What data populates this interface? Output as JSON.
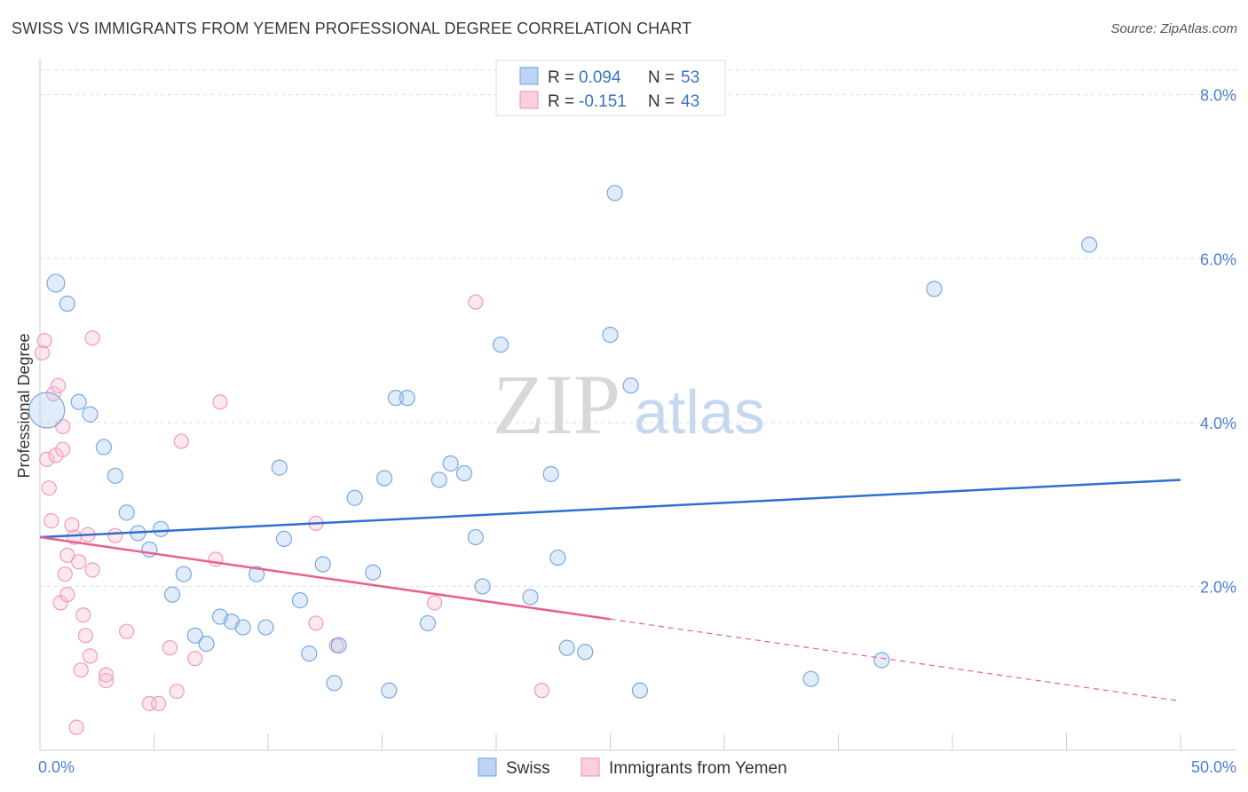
{
  "header": {
    "title": "SWISS VS IMMIGRANTS FROM YEMEN PROFESSIONAL DEGREE CORRELATION CHART",
    "source": "Source: ZipAtlas.com"
  },
  "watermark": {
    "zip": "ZIP",
    "atlas": "atlas"
  },
  "legend_top": {
    "rows": [
      {
        "r_label": "R = ",
        "r_value": "0.094",
        "n_label": "N = ",
        "n_value": "53"
      },
      {
        "r_label": "R = ",
        "r_value": "-0.151",
        "n_label": "N = ",
        "n_value": "43"
      }
    ]
  },
  "legend_bottom": {
    "items": [
      "Swiss",
      "Immigrants from Yemen"
    ]
  },
  "chart_data": {
    "type": "scatter",
    "title": "SWISS VS IMMIGRANTS FROM YEMEN PROFESSIONAL DEGREE CORRELATION CHART",
    "xlabel": "",
    "ylabel": "Professional Degree",
    "xlim": [
      0,
      50
    ],
    "ylim": [
      0,
      8.3
    ],
    "x_tick_labels": [
      "0.0%",
      "50.0%"
    ],
    "y_ticks": [
      2,
      4,
      6,
      8
    ],
    "y_tick_labels": [
      "2.0%",
      "4.0%",
      "6.0%",
      "8.0%"
    ],
    "grid": "horizontal dashed",
    "legend_position": "top-center",
    "colors": {
      "swiss": "#6fa0e0",
      "yemen": "#f08db0",
      "swiss_line": "#2f6fcf",
      "yemen_line": "#e8608f"
    },
    "series": [
      {
        "name": "Swiss",
        "r": 0.094,
        "n": 53,
        "trend": {
          "x": [
            0,
            50
          ],
          "y": [
            2.6,
            3.3
          ]
        },
        "points": [
          [
            0.3,
            4.15
          ],
          [
            0.7,
            5.7
          ],
          [
            1.2,
            5.45
          ],
          [
            1.7,
            4.25
          ],
          [
            2.2,
            4.1
          ],
          [
            2.8,
            3.7
          ],
          [
            3.3,
            3.35
          ],
          [
            3.8,
            2.9
          ],
          [
            4.3,
            2.65
          ],
          [
            4.8,
            2.45
          ],
          [
            5.3,
            2.7
          ],
          [
            5.8,
            1.9
          ],
          [
            6.3,
            2.15
          ],
          [
            6.8,
            1.4
          ],
          [
            7.3,
            1.3
          ],
          [
            7.9,
            1.63
          ],
          [
            8.4,
            1.57
          ],
          [
            8.9,
            1.5
          ],
          [
            9.5,
            2.15
          ],
          [
            9.9,
            1.5
          ],
          [
            10.5,
            3.45
          ],
          [
            10.7,
            2.58
          ],
          [
            11.4,
            1.83
          ],
          [
            11.8,
            1.18
          ],
          [
            12.4,
            2.27
          ],
          [
            12.9,
            0.82
          ],
          [
            13.1,
            1.28
          ],
          [
            13.8,
            3.08
          ],
          [
            14.6,
            2.17
          ],
          [
            15.1,
            3.32
          ],
          [
            15.3,
            0.73
          ],
          [
            15.6,
            4.3
          ],
          [
            16.1,
            4.3
          ],
          [
            17.0,
            1.55
          ],
          [
            17.5,
            3.3
          ],
          [
            18.0,
            3.5
          ],
          [
            18.6,
            3.38
          ],
          [
            19.1,
            2.6
          ],
          [
            19.4,
            2.0
          ],
          [
            20.2,
            4.95
          ],
          [
            21.5,
            1.87
          ],
          [
            22.4,
            3.37
          ],
          [
            22.7,
            2.35
          ],
          [
            23.1,
            1.25
          ],
          [
            23.9,
            1.2
          ],
          [
            25.0,
            5.07
          ],
          [
            25.2,
            6.8
          ],
          [
            25.9,
            4.45
          ],
          [
            26.3,
            0.73
          ],
          [
            33.8,
            0.87
          ],
          [
            36.9,
            1.1
          ],
          [
            39.2,
            5.63
          ],
          [
            46.0,
            6.17
          ]
        ]
      },
      {
        "name": "Immigrants from Yemen",
        "r": -0.151,
        "n": 43,
        "trend": {
          "x": [
            0,
            25
          ],
          "y": [
            2.6,
            1.6
          ]
        },
        "trend_extension": {
          "x": [
            25,
            50
          ],
          "y": [
            1.6,
            0.6
          ]
        },
        "points": [
          [
            0.1,
            4.85
          ],
          [
            0.2,
            5.0
          ],
          [
            0.3,
            3.55
          ],
          [
            0.4,
            3.2
          ],
          [
            0.5,
            2.8
          ],
          [
            0.6,
            4.35
          ],
          [
            0.7,
            3.6
          ],
          [
            0.8,
            4.45
          ],
          [
            0.9,
            1.8
          ],
          [
            1.0,
            3.67
          ],
          [
            1.0,
            3.95
          ],
          [
            1.1,
            2.15
          ],
          [
            1.2,
            2.38
          ],
          [
            1.2,
            1.9
          ],
          [
            1.4,
            2.75
          ],
          [
            1.5,
            2.6
          ],
          [
            1.6,
            0.28
          ],
          [
            1.7,
            2.3
          ],
          [
            1.8,
            0.98
          ],
          [
            1.9,
            1.65
          ],
          [
            2.0,
            1.4
          ],
          [
            2.1,
            2.63
          ],
          [
            2.2,
            1.15
          ],
          [
            2.3,
            2.2
          ],
          [
            2.3,
            5.03
          ],
          [
            2.9,
            0.85
          ],
          [
            2.9,
            0.92
          ],
          [
            3.3,
            2.62
          ],
          [
            3.8,
            1.45
          ],
          [
            4.8,
            0.57
          ],
          [
            5.2,
            0.57
          ],
          [
            5.7,
            1.25
          ],
          [
            6.0,
            0.72
          ],
          [
            6.2,
            3.77
          ],
          [
            6.8,
            1.12
          ],
          [
            7.7,
            2.33
          ],
          [
            7.9,
            4.25
          ],
          [
            12.1,
            2.77
          ],
          [
            12.1,
            1.55
          ],
          [
            13.0,
            1.28
          ],
          [
            17.3,
            1.8
          ],
          [
            19.1,
            5.47
          ],
          [
            22.0,
            0.73
          ]
        ]
      }
    ]
  }
}
